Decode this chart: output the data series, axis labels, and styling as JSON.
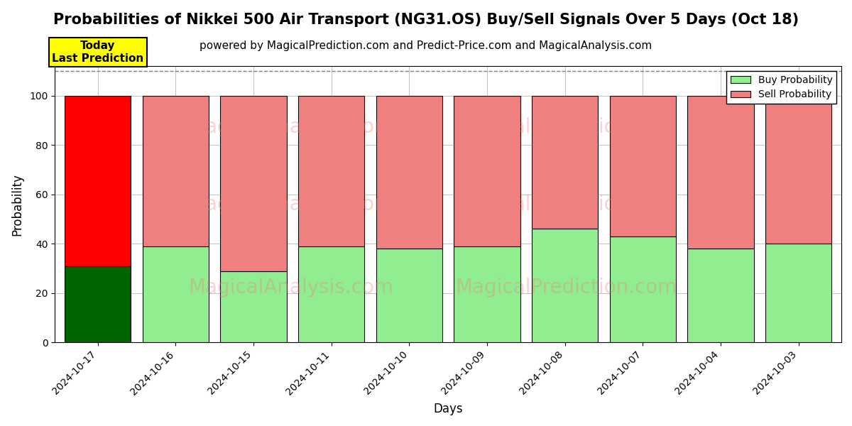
{
  "title": "Probabilities of Nikkei 500 Air Transport (NG31.OS) Buy/Sell Signals Over 5 Days (Oct 18)",
  "subtitle": "powered by MagicalPrediction.com and Predict-Price.com and MagicalAnalysis.com",
  "xlabel": "Days",
  "ylabel": "Probability",
  "categories": [
    "2024-10-17",
    "2024-10-16",
    "2024-10-15",
    "2024-10-11",
    "2024-10-10",
    "2024-10-09",
    "2024-10-08",
    "2024-10-07",
    "2024-10-04",
    "2024-10-03"
  ],
  "buy_values": [
    31,
    39,
    29,
    39,
    38,
    39,
    46,
    43,
    38,
    40
  ],
  "sell_values": [
    69,
    61,
    71,
    61,
    62,
    61,
    54,
    57,
    62,
    60
  ],
  "buy_colors": [
    "#006400",
    "#90EE90",
    "#90EE90",
    "#90EE90",
    "#90EE90",
    "#90EE90",
    "#90EE90",
    "#90EE90",
    "#90EE90",
    "#90EE90"
  ],
  "sell_colors": [
    "#FF0000",
    "#F08080",
    "#F08080",
    "#F08080",
    "#F08080",
    "#F08080",
    "#F08080",
    "#F08080",
    "#F08080",
    "#F08080"
  ],
  "today_label": "Today\nLast Prediction",
  "legend_buy_label": "Buy Probability",
  "legend_sell_label": "Sell Probability",
  "ylim": [
    0,
    112
  ],
  "yticks": [
    0,
    20,
    40,
    60,
    80,
    100
  ],
  "dashed_line_y": 110,
  "watermark_lines": [
    "MagicalAnalysis.com",
    "MagicalPrediction.com"
  ],
  "bg_color": "#ffffff",
  "grid_color": "#aaaaaa",
  "title_fontsize": 15,
  "subtitle_fontsize": 11,
  "bar_width": 0.85,
  "edgecolor": "black",
  "edgewidth": 0.8
}
